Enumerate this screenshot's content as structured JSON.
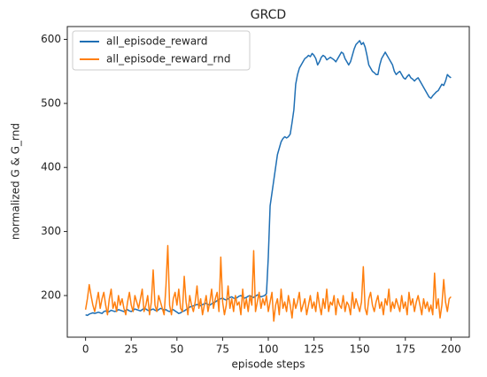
{
  "chart_data": {
    "type": "line",
    "title": "GRCD",
    "x_label": "episode steps",
    "y_label": "normalized  G & G_rnd",
    "legend": "upper left",
    "grid": false,
    "xlim": [
      -10,
      210
    ],
    "xticks": [
      0,
      25,
      50,
      75,
      100,
      125,
      150,
      175,
      200
    ],
    "ylim": [
      135,
      620
    ],
    "yticks": [
      200,
      300,
      400,
      500,
      600
    ],
    "x": [
      0,
      1,
      2,
      3,
      4,
      5,
      6,
      7,
      8,
      9,
      10,
      11,
      12,
      13,
      14,
      15,
      16,
      17,
      18,
      19,
      20,
      21,
      22,
      23,
      24,
      25,
      26,
      27,
      28,
      29,
      30,
      31,
      32,
      33,
      34,
      35,
      36,
      37,
      38,
      39,
      40,
      41,
      42,
      43,
      44,
      45,
      46,
      47,
      48,
      49,
      50,
      51,
      52,
      53,
      54,
      55,
      56,
      57,
      58,
      59,
      60,
      61,
      62,
      63,
      64,
      65,
      66,
      67,
      68,
      69,
      70,
      71,
      72,
      73,
      74,
      75,
      76,
      77,
      78,
      79,
      80,
      81,
      82,
      83,
      84,
      85,
      86,
      87,
      88,
      89,
      90,
      91,
      92,
      93,
      94,
      95,
      96,
      97,
      98,
      99,
      100,
      101,
      102,
      103,
      104,
      105,
      106,
      107,
      108,
      109,
      110,
      111,
      112,
      113,
      114,
      115,
      116,
      117,
      118,
      119,
      120,
      121,
      122,
      123,
      124,
      125,
      126,
      127,
      128,
      129,
      130,
      131,
      132,
      133,
      134,
      135,
      136,
      137,
      138,
      139,
      140,
      141,
      142,
      143,
      144,
      145,
      146,
      147,
      148,
      149,
      150,
      151,
      152,
      153,
      154,
      155,
      156,
      157,
      158,
      159,
      160,
      161,
      162,
      163,
      164,
      165,
      166,
      167,
      168,
      169,
      170,
      171,
      172,
      173,
      174,
      175,
      176,
      177,
      178,
      179,
      180,
      181,
      182,
      183,
      184,
      185,
      186,
      187,
      188,
      189,
      190,
      191,
      192,
      193,
      194,
      195,
      196,
      197,
      198,
      199,
      200
    ],
    "series": [
      {
        "name": "all_episode_reward",
        "color": "#1f6fb4",
        "values": [
          170,
          169,
          171,
          172,
          173,
          172,
          173,
          174,
          173,
          172,
          175,
          176,
          174,
          175,
          177,
          176,
          175,
          176,
          178,
          177,
          176,
          175,
          177,
          178,
          176,
          175,
          177,
          179,
          178,
          177,
          176,
          178,
          180,
          179,
          177,
          176,
          178,
          179,
          177,
          176,
          178,
          180,
          179,
          177,
          178,
          176,
          175,
          177,
          178,
          176,
          174,
          172,
          173,
          175,
          176,
          178,
          180,
          182,
          183,
          184,
          185,
          186,
          185,
          184,
          186,
          187,
          188,
          186,
          185,
          187,
          189,
          190,
          192,
          194,
          195,
          196,
          194,
          193,
          195,
          197,
          198,
          196,
          195,
          197,
          199,
          200,
          198,
          196,
          197,
          199,
          200,
          198,
          197,
          199,
          201,
          200,
          198,
          199,
          200,
          203,
          260,
          340,
          360,
          380,
          400,
          420,
          430,
          440,
          445,
          448,
          446,
          448,
          452,
          470,
          490,
          530,
          545,
          555,
          560,
          565,
          570,
          572,
          575,
          573,
          578,
          575,
          570,
          560,
          565,
          572,
          575,
          573,
          568,
          570,
          572,
          570,
          568,
          565,
          570,
          575,
          580,
          578,
          570,
          565,
          560,
          565,
          575,
          585,
          592,
          595,
          598,
          592,
          595,
          588,
          575,
          560,
          555,
          550,
          548,
          545,
          545,
          560,
          570,
          575,
          580,
          575,
          570,
          565,
          560,
          550,
          545,
          548,
          550,
          545,
          540,
          538,
          542,
          545,
          540,
          538,
          535,
          538,
          540,
          535,
          530,
          525,
          520,
          515,
          510,
          508,
          512,
          515,
          518,
          520,
          525,
          530,
          528,
          535,
          545,
          542,
          540
        ]
      },
      {
        "name": "all_episode_reward_rnd",
        "color": "#ff7f0e",
        "values": [
          178,
          195,
          217,
          200,
          185,
          175,
          190,
          205,
          180,
          195,
          205,
          185,
          170,
          195,
          210,
          180,
          190,
          175,
          200,
          185,
          195,
          180,
          170,
          190,
          205,
          185,
          175,
          200,
          190,
          180,
          195,
          210,
          175,
          185,
          200,
          170,
          190,
          240,
          185,
          175,
          200,
          190,
          180,
          170,
          215,
          278,
          185,
          170,
          195,
          205,
          185,
          210,
          180,
          175,
          230,
          190,
          170,
          200,
          185,
          175,
          190,
          215,
          180,
          195,
          170,
          185,
          200,
          175,
          190,
          210,
          180,
          195,
          205,
          175,
          260,
          190,
          170,
          185,
          215,
          180,
          195,
          175,
          200,
          185,
          190,
          170,
          210,
          180,
          195,
          175,
          200,
          185,
          270,
          175,
          190,
          205,
          180,
          195,
          185,
          200,
          175,
          190,
          205,
          160,
          185,
          195,
          170,
          210,
          180,
          190,
          175,
          200,
          185,
          165,
          195,
          180,
          190,
          205,
          175,
          185,
          195,
          170,
          185,
          200,
          180,
          190,
          175,
          205,
          185,
          170,
          195,
          180,
          210,
          175,
          190,
          185,
          200,
          170,
          195,
          185,
          180,
          200,
          175,
          190,
          185,
          170,
          205,
          180,
          195,
          185,
          175,
          190,
          245,
          180,
          170,
          195,
          205,
          185,
          175,
          190,
          200,
          180,
          190,
          170,
          195,
          185,
          210,
          175,
          190,
          180,
          195,
          185,
          175,
          200,
          180,
          190,
          170,
          205,
          185,
          195,
          175,
          190,
          200,
          185,
          170,
          195,
          180,
          190,
          175,
          185,
          170,
          235,
          180,
          195,
          165,
          185,
          225,
          190,
          175,
          195,
          198
        ]
      }
    ]
  }
}
